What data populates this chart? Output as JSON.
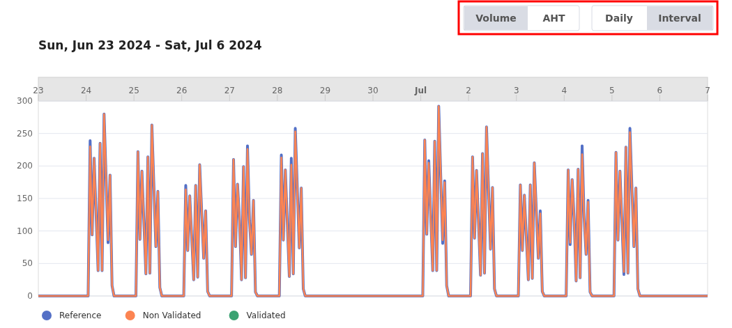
{
  "chart_data": {
    "type": "line",
    "title": "Sun, Jun 23 2024 - Sat, Jul 6 2024",
    "annotations": [
      "Volume",
      "AHT",
      "Daily",
      "Interval"
    ],
    "xlim": [
      "2024-06-23",
      "2024-07-07"
    ],
    "xticks": [
      {
        "value": "2024-06-23",
        "label": "23"
      },
      {
        "value": "2024-06-24",
        "label": "24"
      },
      {
        "value": "2024-06-25",
        "label": "25"
      },
      {
        "value": "2024-06-26",
        "label": "26"
      },
      {
        "value": "2024-06-27",
        "label": "27"
      },
      {
        "value": "2024-06-28",
        "label": "28"
      },
      {
        "value": "2024-06-29",
        "label": "29"
      },
      {
        "value": "2024-06-30",
        "label": "30"
      },
      {
        "value": "2024-07-01",
        "label": "Jul"
      },
      {
        "value": "2024-07-02",
        "label": "2"
      },
      {
        "value": "2024-07-03",
        "label": "3"
      },
      {
        "value": "2024-07-04",
        "label": "4"
      },
      {
        "value": "2024-07-05",
        "label": "5"
      },
      {
        "value": "2024-07-06",
        "label": "6"
      },
      {
        "value": "2024-07-07",
        "label": "7"
      }
    ],
    "ylim": [
      0,
      300
    ],
    "yticks": [
      0,
      50,
      100,
      150,
      200,
      250,
      300
    ],
    "grid": "y",
    "legend": "bottom left",
    "marker": "none",
    "line_style": "solid",
    "x": [
      "2024-06-23T00:00",
      "2024-06-24T01:00",
      "2024-06-24T02:00",
      "2024-06-24T03:00",
      "2024-06-24T04:00",
      "2024-06-24T06:00",
      "2024-06-24T07:00",
      "2024-06-24T08:00",
      "2024-06-24T09:00",
      "2024-06-24T11:00",
      "2024-06-24T12:00",
      "2024-06-24T13:00",
      "2024-06-24T14:00",
      "2024-06-25T01:00",
      "2024-06-25T02:00",
      "2024-06-25T03:00",
      "2024-06-25T04:00",
      "2024-06-25T06:00",
      "2024-06-25T07:00",
      "2024-06-25T08:00",
      "2024-06-25T09:00",
      "2024-06-25T11:00",
      "2024-06-25T12:00",
      "2024-06-25T13:00",
      "2024-06-25T14:00",
      "2024-06-26T01:00",
      "2024-06-26T02:00",
      "2024-06-26T03:00",
      "2024-06-26T04:00",
      "2024-06-26T06:00",
      "2024-06-26T07:00",
      "2024-06-26T08:00",
      "2024-06-26T09:00",
      "2024-06-26T11:00",
      "2024-06-26T12:00",
      "2024-06-26T13:00",
      "2024-06-26T14:00",
      "2024-06-27T01:00",
      "2024-06-27T02:00",
      "2024-06-27T03:00",
      "2024-06-27T04:00",
      "2024-06-27T05:00",
      "2024-06-27T06:00",
      "2024-06-27T07:00",
      "2024-06-27T08:00",
      "2024-06-27T09:00",
      "2024-06-27T10:00",
      "2024-06-27T11:00",
      "2024-06-27T12:00",
      "2024-06-27T13:00",
      "2024-06-27T14:00",
      "2024-06-28T01:00",
      "2024-06-28T02:00",
      "2024-06-28T03:00",
      "2024-06-28T04:00",
      "2024-06-28T06:00",
      "2024-06-28T07:00",
      "2024-06-28T08:00",
      "2024-06-28T09:00",
      "2024-06-28T11:00",
      "2024-06-28T12:00",
      "2024-06-28T13:00",
      "2024-06-28T14:00",
      "2024-07-01T01:00",
      "2024-07-01T02:00",
      "2024-07-01T03:00",
      "2024-07-01T04:00",
      "2024-07-01T06:00",
      "2024-07-01T07:00",
      "2024-07-01T08:00",
      "2024-07-01T09:00",
      "2024-07-01T11:00",
      "2024-07-01T12:00",
      "2024-07-01T13:00",
      "2024-07-01T14:00",
      "2024-07-02T01:00",
      "2024-07-02T02:00",
      "2024-07-02T03:00",
      "2024-07-02T04:00",
      "2024-07-02T06:00",
      "2024-07-02T07:00",
      "2024-07-02T08:00",
      "2024-07-02T09:00",
      "2024-07-02T11:00",
      "2024-07-02T12:00",
      "2024-07-02T13:00",
      "2024-07-02T14:00",
      "2024-07-03T01:00",
      "2024-07-03T02:00",
      "2024-07-03T03:00",
      "2024-07-03T04:00",
      "2024-07-03T06:00",
      "2024-07-03T07:00",
      "2024-07-03T08:00",
      "2024-07-03T09:00",
      "2024-07-03T11:00",
      "2024-07-03T12:00",
      "2024-07-03T13:00",
      "2024-07-03T14:00",
      "2024-07-04T01:00",
      "2024-07-04T02:00",
      "2024-07-04T03:00",
      "2024-07-04T04:00",
      "2024-07-04T05:00",
      "2024-07-04T06:00",
      "2024-07-04T07:00",
      "2024-07-04T08:00",
      "2024-07-04T09:00",
      "2024-07-04T10:00",
      "2024-07-04T11:00",
      "2024-07-04T12:00",
      "2024-07-04T13:00",
      "2024-07-04T14:00",
      "2024-07-05T01:00",
      "2024-07-05T02:00",
      "2024-07-05T03:00",
      "2024-07-05T04:00",
      "2024-07-05T06:00",
      "2024-07-05T07:00",
      "2024-07-05T08:00",
      "2024-07-05T09:00",
      "2024-07-05T11:00",
      "2024-07-05T12:00",
      "2024-07-05T13:00",
      "2024-07-05T14:00",
      "2024-07-07T00:00"
    ],
    "series": [
      {
        "name": "Reference",
        "color": "#5470c6",
        "values": [
          0,
          0,
          239,
          94,
          212,
          39,
          235,
          39,
          280,
          82,
          186,
          16,
          0,
          0,
          222,
          87,
          192,
          34,
          214,
          35,
          263,
          76,
          161,
          13,
          0,
          0,
          170,
          70,
          154,
          25,
          170,
          29,
          202,
          58,
          131,
          7,
          0,
          0,
          210,
          76,
          172,
          116,
          25,
          199,
          28,
          231,
          116,
          64,
          147,
          6,
          0,
          0,
          217,
          86,
          194,
          30,
          212,
          34,
          258,
          74,
          166,
          11,
          0,
          0,
          240,
          95,
          208,
          39,
          238,
          39,
          292,
          81,
          177,
          16,
          0,
          0,
          214,
          89,
          193,
          32,
          219,
          35,
          260,
          72,
          167,
          11,
          0,
          0,
          171,
          70,
          155,
          25,
          171,
          27,
          205,
          58,
          131,
          7,
          0,
          0,
          194,
          79,
          179,
          119,
          23,
          195,
          28,
          231,
          121,
          64,
          147,
          6,
          0,
          0,
          221,
          86,
          192,
          33,
          229,
          35,
          258,
          76,
          166,
          11,
          0,
          0
        ]
      },
      {
        "name": "Non Validated",
        "color": "#fc8452",
        "values": [
          0,
          0,
          230,
          94,
          212,
          39,
          235,
          39,
          280,
          86,
          186,
          16,
          0,
          0,
          222,
          87,
          192,
          34,
          214,
          35,
          263,
          76,
          161,
          13,
          0,
          0,
          164,
          70,
          154,
          25,
          170,
          29,
          202,
          58,
          131,
          7,
          0,
          0,
          210,
          76,
          172,
          116,
          25,
          199,
          28,
          226,
          116,
          64,
          147,
          6,
          0,
          0,
          213,
          86,
          194,
          30,
          202,
          34,
          253,
          74,
          166,
          11,
          0,
          0,
          240,
          95,
          205,
          39,
          238,
          39,
          292,
          86,
          175,
          16,
          0,
          0,
          214,
          89,
          193,
          32,
          219,
          35,
          260,
          72,
          167,
          11,
          0,
          0,
          171,
          70,
          155,
          25,
          171,
          27,
          205,
          58,
          127,
          7,
          0,
          0,
          194,
          82,
          179,
          119,
          23,
          195,
          28,
          218,
          121,
          64,
          145,
          6,
          0,
          0,
          221,
          86,
          192,
          37,
          229,
          35,
          252,
          76,
          166,
          11,
          0,
          0
        ]
      },
      {
        "name": "Validated",
        "color": "#3ba272",
        "values": [
          null,
          null,
          null,
          null,
          null,
          null,
          null,
          null,
          null,
          null,
          null,
          null,
          null,
          null,
          null,
          null,
          null,
          null,
          null,
          null,
          null,
          null,
          null,
          null,
          null,
          null,
          null,
          null,
          null,
          null,
          null,
          null,
          null,
          null,
          null,
          null,
          null,
          null,
          null,
          null,
          null,
          null,
          null,
          null,
          null,
          null,
          null,
          null,
          null,
          null,
          null,
          null,
          null,
          null,
          null,
          null,
          null,
          null,
          null,
          null,
          null,
          null,
          null,
          null,
          null,
          null,
          null,
          null,
          null,
          null,
          null,
          null,
          null,
          null,
          null,
          null,
          null,
          null,
          null,
          null,
          null,
          null,
          null,
          null,
          null,
          null,
          null,
          null,
          null,
          null,
          null,
          null,
          null,
          null,
          null,
          null,
          null,
          null,
          null,
          null,
          null,
          null,
          null,
          null,
          null,
          null,
          null,
          null,
          null,
          null,
          null,
          null,
          null,
          null,
          null,
          null,
          null,
          null,
          null,
          null,
          null,
          null,
          null,
          null,
          null,
          null
        ]
      }
    ]
  }
}
